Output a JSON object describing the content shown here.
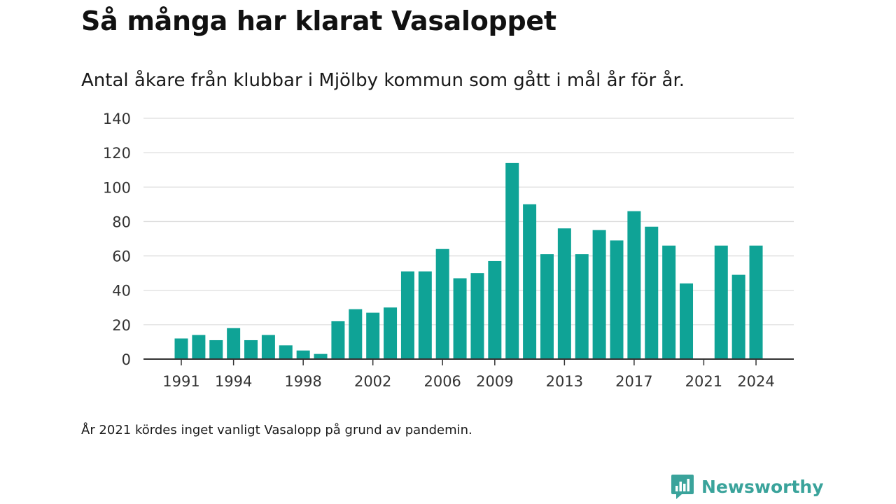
{
  "title": "Så många har klarat Vasaloppet",
  "subtitle": "Antal åkare från klubbar i Mjölby kommun som gått i mål år för år.",
  "note": "År 2021 kördes inget vanligt Vasalopp på grund av pandemin.",
  "brand": {
    "name": "Newsworthy",
    "icon": "newsworthy-logo-icon",
    "color": "#3aa39b"
  },
  "colors": {
    "bar": "#0fa396",
    "grid": "#dddddd",
    "axis": "#333333"
  },
  "chart_data": {
    "type": "bar",
    "title": "",
    "xlabel": "",
    "ylabel": "",
    "ylim": [
      0,
      140
    ],
    "yticks": [
      0,
      20,
      40,
      60,
      80,
      100,
      120,
      140
    ],
    "xtick_labels": [
      "1991",
      "1994",
      "1998",
      "2002",
      "2006",
      "2009",
      "2013",
      "2017",
      "2021",
      "2024"
    ],
    "grid": true,
    "categories": [
      "1991",
      "1992",
      "1993",
      "1994",
      "1995",
      "1996",
      "1997",
      "1998",
      "1999",
      "2000",
      "2001",
      "2002",
      "2003",
      "2004",
      "2005",
      "2006",
      "2007",
      "2008",
      "2009",
      "2010",
      "2011",
      "2012",
      "2013",
      "2014",
      "2015",
      "2016",
      "2017",
      "2018",
      "2019",
      "2020",
      "2021",
      "2022",
      "2023",
      "2024"
    ],
    "values": [
      12,
      14,
      11,
      18,
      11,
      14,
      8,
      5,
      3,
      22,
      29,
      27,
      30,
      51,
      51,
      64,
      47,
      50,
      57,
      114,
      90,
      61,
      76,
      61,
      75,
      69,
      86,
      77,
      66,
      44,
      0,
      66,
      49,
      66
    ]
  }
}
